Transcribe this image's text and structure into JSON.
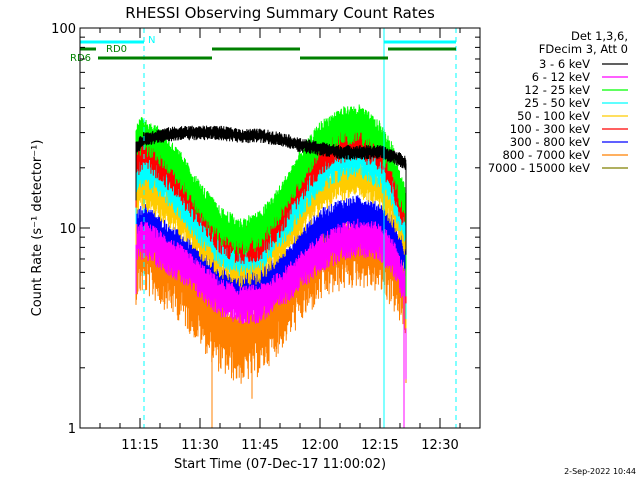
{
  "chart_data": {
    "type": "line",
    "title": "RHESSI Observing Summary Count Rates",
    "xlabel": "Start Time (07-Dec-17 11:00:02)",
    "ylabel": "Count Rate (s⁻¹ detector⁻¹)",
    "x_units": "minutes after 11:00:02",
    "xlim": [
      0,
      100
    ],
    "ylim": [
      1,
      100
    ],
    "yscale": "log",
    "x_ticks": [
      {
        "t": 15,
        "label": "11:15"
      },
      {
        "t": 30,
        "label": "11:30"
      },
      {
        "t": 45,
        "label": "11:45"
      },
      {
        "t": 60,
        "label": "12:00"
      },
      {
        "t": 75,
        "label": "12:15"
      },
      {
        "t": 90,
        "label": "12:30"
      }
    ],
    "y_ticks": [
      {
        "v": 1,
        "label": "1"
      },
      {
        "v": 10,
        "label": "10"
      },
      {
        "v": 100,
        "label": "100"
      }
    ],
    "grid": false,
    "legend_position": "top-right",
    "legend_header": [
      "Det 1,3,6,",
      "FDecim 3, Att 0"
    ],
    "timestamp": "2-Sep-2022 10:44",
    "data_start": 14,
    "data_end": 81.5,
    "series": [
      {
        "name": "3 - 6 keV",
        "color": "#000000",
        "t": [
          14,
          16,
          20,
          25,
          30,
          35,
          40,
          45,
          50,
          55,
          60,
          65,
          70,
          75,
          78,
          80,
          81.5
        ],
        "v": [
          25,
          28,
          29,
          30,
          30,
          30,
          29,
          29,
          28,
          26,
          25,
          24,
          24,
          24,
          23,
          22,
          21
        ]
      },
      {
        "name": "6 - 12 keV",
        "color": "#ff00ff",
        "t": [
          14,
          16,
          20,
          25,
          30,
          35,
          40,
          45,
          50,
          55,
          60,
          65,
          70,
          75,
          78,
          80,
          81.5
        ],
        "v": [
          8.5,
          9,
          8,
          6.8,
          5.6,
          4.6,
          4.2,
          4.3,
          5,
          6.2,
          7.6,
          8.7,
          9.2,
          8.7,
          7.5,
          6,
          5
        ]
      },
      {
        "name": "12 - 25 keV",
        "color": "#00ff00",
        "t": [
          14,
          16,
          20,
          25,
          30,
          35,
          40,
          45,
          50,
          55,
          60,
          65,
          70,
          75,
          78,
          80,
          81.5
        ],
        "v": [
          28,
          30,
          26,
          20,
          14,
          10.5,
          9.2,
          10,
          13.5,
          20,
          28,
          33,
          34,
          28,
          22,
          16,
          13
        ]
      },
      {
        "name": "25 - 50 keV",
        "color": "#00ffff",
        "t": [
          14,
          16,
          20,
          25,
          30,
          35,
          40,
          45,
          50,
          55,
          60,
          65,
          70,
          75,
          78,
          80,
          81.5
        ],
        "v": [
          19,
          21,
          18,
          14,
          10.5,
          8.2,
          7.3,
          7.8,
          10,
          14,
          19,
          22,
          23,
          20,
          16,
          12,
          10
        ]
      },
      {
        "name": "50 - 100 keV",
        "color": "#ffcc00",
        "t": [
          14,
          16,
          20,
          25,
          30,
          35,
          40,
          45,
          50,
          55,
          60,
          65,
          70,
          75,
          78,
          80,
          81.5
        ],
        "v": [
          15,
          16,
          14,
          11.5,
          9,
          7.2,
          6.4,
          6.8,
          8.5,
          11.5,
          15,
          17.5,
          18,
          16,
          13,
          10.5,
          9
        ]
      },
      {
        "name": "100 - 300 keV",
        "color": "#ff0000",
        "t": [
          14,
          16,
          20,
          25,
          30,
          35,
          40,
          45,
          50,
          55,
          60,
          65,
          70,
          75,
          78,
          80,
          81.5
        ],
        "v": [
          23,
          25,
          22,
          17,
          12.5,
          9.5,
          8.3,
          8.8,
          11.5,
          17,
          23,
          27,
          28,
          24,
          19,
          14,
          12
        ]
      },
      {
        "name": "300 - 800 keV",
        "color": "#0000ff",
        "t": [
          14,
          16,
          20,
          25,
          30,
          35,
          40,
          45,
          50,
          55,
          60,
          65,
          70,
          75,
          78,
          80,
          81.5
        ],
        "v": [
          10,
          11,
          9.5,
          8,
          6.4,
          5.4,
          5,
          5.2,
          6.2,
          8,
          10.2,
          11.5,
          12,
          11,
          9.5,
          8,
          7
        ]
      },
      {
        "name": "800 - 7000 keV",
        "color": "#ff8000",
        "t": [
          14,
          16,
          20,
          25,
          30,
          35,
          40,
          45,
          50,
          55,
          60,
          65,
          70,
          75,
          78,
          80,
          81.5
        ],
        "v": [
          7.5,
          8,
          7,
          5.8,
          4.4,
          3.2,
          2.8,
          3.1,
          4.1,
          5.6,
          7.2,
          8.2,
          8.7,
          8,
          6.8,
          5.5,
          4.8
        ]
      },
      {
        "name": "7000 - 15000 keV",
        "color": "#808000",
        "t": [],
        "v": []
      }
    ],
    "state_bars": [
      {
        "label": "N",
        "color": "#00ffff",
        "segments": [
          [
            0,
            16
          ],
          [
            76,
            94
          ]
        ]
      },
      {
        "label": "RD0",
        "color": "#008000",
        "segments": [
          [
            0,
            4
          ],
          [
            33,
            55
          ],
          [
            77,
            94
          ]
        ]
      },
      {
        "label": "RD6",
        "color": "#008000",
        "segments": [
          [
            4.5,
            33
          ],
          [
            55,
            77
          ]
        ]
      }
    ],
    "vertical_markers": [
      {
        "t": 16,
        "color": "#00ffff",
        "style": "dashed"
      },
      {
        "t": 76,
        "color": "#00ffff",
        "style": "solid"
      },
      {
        "t": 94,
        "color": "#00ffff",
        "style": "dashed"
      }
    ]
  }
}
